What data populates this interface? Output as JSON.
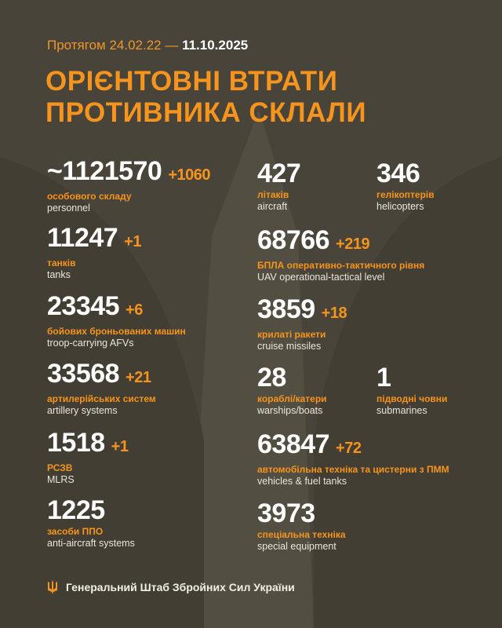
{
  "header": {
    "period_prefix": "Протягом 24.02.22 —",
    "period_date": "11.10.2025",
    "title_line1": "ОРІЄНТОВНІ ВТРАТИ",
    "title_line2": "ПРОТИВНИКА СКЛАЛИ"
  },
  "stats": [
    {
      "value": "~1121570",
      "delta": "+1060",
      "ua": "особового складу",
      "en": "personnel"
    },
    {
      "value": "11247",
      "delta": "+1",
      "ua": "танків",
      "en": "tanks"
    },
    {
      "value": "23345",
      "delta": "+6",
      "ua": "бойових броньованих машин",
      "en": "troop-carrying AFVs"
    },
    {
      "value": "33568",
      "delta": "+21",
      "ua": "артилерійських систем",
      "en": "artillery systems"
    },
    {
      "value": "1518",
      "delta": "+1",
      "ua": "РСЗВ",
      "en": "MLRS"
    },
    {
      "value": "1225",
      "delta": "",
      "ua": "засоби ППО",
      "en": "anti-aircraft systems"
    },
    {
      "value": "427",
      "delta": "",
      "ua": "літаків",
      "en": "aircraft"
    },
    {
      "value": "346",
      "delta": "",
      "ua": "гелікоптерів",
      "en": "helicopters"
    },
    {
      "value": "68766",
      "delta": "+219",
      "ua": "БПЛА оперативно-тактичного рівня",
      "en": "UAV operational-tactical level"
    },
    {
      "value": "3859",
      "delta": "+18",
      "ua": "крилаті ракети",
      "en": "cruise missiles"
    },
    {
      "value": "28",
      "delta": "",
      "ua": "кораблі/катери",
      "en": "warships/boats"
    },
    {
      "value": "1",
      "delta": "",
      "ua": "підводні човни",
      "en": "submarines"
    },
    {
      "value": "63847",
      "delta": "+72",
      "ua": "автомобільна техніка та цистерни з ПММ",
      "en": "vehicles & fuel tanks"
    },
    {
      "value": "3973",
      "delta": "",
      "ua": "спеціальна техніка",
      "en": "special equipment"
    }
  ],
  "footer": {
    "icon": "trident-icon",
    "text": "Генеральний Штаб Збройних Сил України"
  },
  "colors": {
    "background": "#48443a",
    "accent": "#f7941d",
    "text": "#ffffff"
  }
}
